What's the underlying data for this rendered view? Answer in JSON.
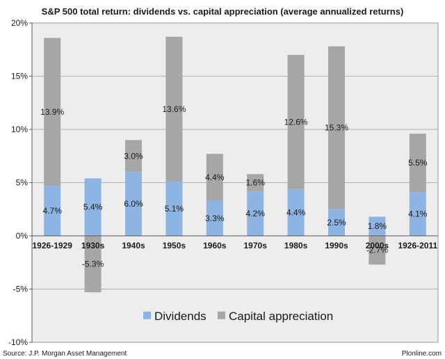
{
  "footer": {
    "source": "Source: J.P. Morgan Asset Management",
    "brand": "Plonline.com"
  },
  "colors": {
    "dividends": "#8db4e2",
    "capital": "#a6a6a6",
    "plot_bg": "#ededed",
    "gridline": "#b0b0b0"
  },
  "chart_data": {
    "type": "bar",
    "stacked": true,
    "title": "S&P 500 total return: dividends vs. capital appreciation (average annualized returns)",
    "xlabel": "",
    "ylabel": "",
    "ylim": [
      -10,
      20
    ],
    "yticks": [
      -10,
      -5,
      0,
      5,
      10,
      15,
      20
    ],
    "ytick_labels": [
      "-10%",
      "-5%",
      "0%",
      "5%",
      "10%",
      "15%",
      "20%"
    ],
    "grid": true,
    "legend_position": "bottom-inside",
    "categories": [
      "1926-1929",
      "1930s",
      "1940s",
      "1950s",
      "1960s",
      "1970s",
      "1980s",
      "1990s",
      "2000s",
      "1926-2011"
    ],
    "series": [
      {
        "name": "Dividends",
        "values": [
          4.7,
          5.4,
          6.0,
          5.1,
          3.3,
          4.2,
          4.4,
          2.5,
          1.8,
          4.1
        ],
        "labels": [
          "4.7%",
          "5.4%",
          "6.0%",
          "5.1%",
          "3.3%",
          "4.2%",
          "4.4%",
          "2.5%",
          "1.8%",
          "4.1%"
        ]
      },
      {
        "name": "Capital appreciation",
        "values": [
          13.9,
          -5.3,
          3.0,
          13.6,
          4.4,
          1.6,
          12.6,
          15.3,
          -2.7,
          5.5
        ],
        "labels": [
          "13.9%",
          "-5.3%",
          "3.0%",
          "13.6%",
          "4.4%",
          "1.6%",
          "12.6%",
          "15.3%",
          "-2.7%",
          "5.5%"
        ]
      }
    ]
  }
}
